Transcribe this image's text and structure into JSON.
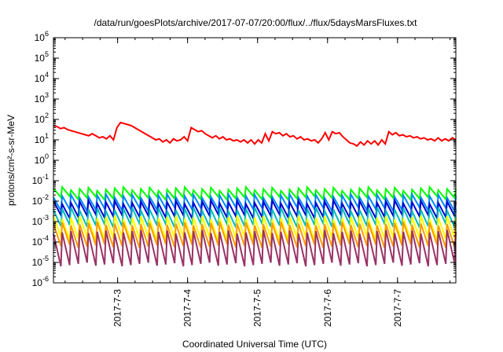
{
  "chart_data": {
    "type": "line",
    "title": "/data/run/goesPlots/archive/2017-07-07/20:00/flux/../flux/5daysMarsFluxes.txt",
    "xlabel": "Coordinated Universal Time (UTC)",
    "ylabel": "protons/cm²-s-sr-MeV",
    "yscale": "log",
    "ylim_exponent": [
      -6,
      6
    ],
    "y_ticks": [
      {
        "base": "10",
        "exp": "-6"
      },
      {
        "base": "10",
        "exp": "-5"
      },
      {
        "base": "10",
        "exp": "-4"
      },
      {
        "base": "10",
        "exp": "-3"
      },
      {
        "base": "10",
        "exp": "-2"
      },
      {
        "base": "10",
        "exp": "-1"
      },
      {
        "base": "10",
        "exp": "0"
      },
      {
        "base": "10",
        "exp": "1"
      },
      {
        "base": "10",
        "exp": "2"
      },
      {
        "base": "10",
        "exp": "3"
      },
      {
        "base": "10",
        "exp": "4"
      },
      {
        "base": "10",
        "exp": "5"
      },
      {
        "base": "10",
        "exp": "6"
      }
    ],
    "x_range_days": [
      "2017-07-02 02:00",
      "2017-07-07 20:00"
    ],
    "x_tick_labels": [
      "2017-7-3",
      "2017-7-4",
      "2017-7-5",
      "2017-7-6",
      "2017-7-7"
    ],
    "series": [
      {
        "color": "#ff0000",
        "style": "irregular",
        "log_y": [
          1.7,
          1.65,
          1.55,
          1.6,
          1.5,
          1.45,
          1.4,
          1.35,
          1.3,
          1.25,
          1.2,
          1.3,
          1.2,
          1.1,
          1.15,
          1.05,
          1.2,
          1.0,
          1.6,
          1.85,
          1.8,
          1.75,
          1.7,
          1.6,
          1.5,
          1.4,
          1.3,
          1.2,
          1.1,
          1.0,
          1.05,
          0.9,
          1.0,
          0.85,
          1.05,
          0.95,
          1.0,
          1.15,
          0.95,
          1.6,
          1.5,
          1.4,
          1.45,
          1.3,
          1.2,
          1.1,
          1.2,
          1.05,
          1.15,
          1.0,
          1.05,
          0.95,
          1.0,
          0.9,
          1.0,
          0.85,
          1.0,
          0.8,
          1.0,
          0.85,
          1.3,
          0.95,
          1.4,
          1.3,
          1.35,
          1.2,
          1.3,
          1.15,
          1.2,
          1.05,
          1.15,
          1.0,
          1.05,
          0.95,
          1.0,
          0.85,
          1.05,
          1.35,
          1.0,
          1.4,
          1.3,
          1.35,
          1.15,
          1.0,
          0.85,
          0.8,
          0.7,
          0.9,
          0.75,
          0.95,
          0.8,
          0.95,
          0.75,
          1.0,
          0.8,
          1.4,
          1.25,
          1.35,
          1.2,
          1.25,
          1.15,
          1.2,
          1.1,
          1.15,
          1.05,
          1.1,
          1.0,
          1.05,
          0.95,
          1.1,
          0.95,
          1.05,
          0.95,
          1.1,
          1.0
        ]
      },
      {
        "color": "#00ff00",
        "style": "sawtooth",
        "teeth": 46,
        "high": -1.4,
        "low": -1.85
      },
      {
        "color": "#0088ff",
        "style": "sawtooth",
        "teeth": 46,
        "high": -1.75,
        "low": -2.4
      },
      {
        "color": "#0000cc",
        "style": "sawtooth",
        "teeth": 46,
        "high": -2.05,
        "low": -2.75
      },
      {
        "color": "#00bbbb",
        "style": "sawtooth",
        "teeth": 46,
        "high": -2.4,
        "low": -3.2
      },
      {
        "color": "#ffff00",
        "style": "sawtooth",
        "teeth": 46,
        "high": -2.8,
        "low": -3.85
      },
      {
        "color": "#ff9900",
        "style": "sawtooth",
        "teeth": 46,
        "high": -3.1,
        "low": -4.2
      },
      {
        "color": "#993366",
        "style": "sawtooth",
        "teeth": 46,
        "high": -3.5,
        "low": -5.1
      }
    ]
  }
}
